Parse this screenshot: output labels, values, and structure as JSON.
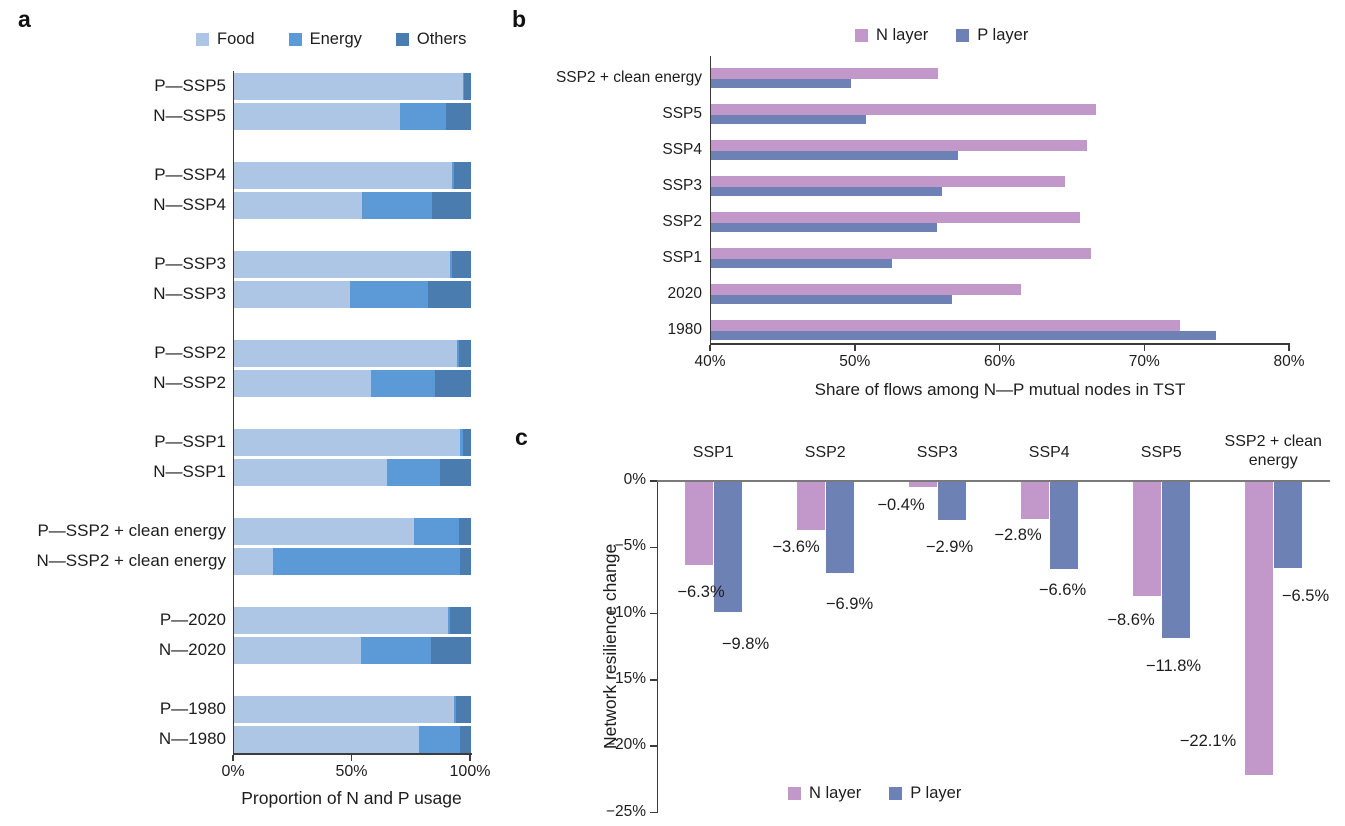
{
  "colors": {
    "food": "#aec6e6",
    "energy": "#5b9ad6",
    "others": "#4a7cb0",
    "n_layer": "#c297c9",
    "p_layer": "#6e81b5",
    "axis": "#3b3b3b",
    "zero_line": "#7a7a7a",
    "text": "#1d1d1f"
  },
  "chart_data": [
    {
      "id": "a",
      "panel_label": "a",
      "type": "bar",
      "subtype": "stacked_horizontal",
      "xlabel": "Proportion of N and P usage",
      "x_ticks": [
        "0%",
        "50%",
        "100%"
      ],
      "x_tick_values": [
        0,
        50,
        100
      ],
      "xlim": [
        0,
        100
      ],
      "grid": false,
      "legend_position": "top",
      "legend": [
        "Food",
        "Energy",
        "Others"
      ],
      "categories": [
        "P—SSP5",
        "N—SSP5",
        "P—SSP4",
        "N—SSP4",
        "P—SSP3",
        "N—SSP3",
        "P—SSP2",
        "N—SSP2",
        "P—SSP1",
        "N—SSP1",
        "P—SSP2 + clean energy",
        "N—SSP2 + clean energy",
        "P—2020",
        "N—2020",
        "P—1980",
        "N—1980"
      ],
      "series": [
        {
          "name": "Food",
          "values": [
            96.5,
            70.0,
            92.0,
            54.0,
            91.0,
            49.0,
            94.0,
            58.0,
            95.5,
            64.5,
            76.0,
            16.5,
            90.5,
            53.5,
            93.0,
            78.0
          ]
        },
        {
          "name": "Energy",
          "values": [
            0.5,
            19.5,
            1.0,
            29.5,
            1.0,
            33.0,
            1.0,
            27.0,
            1.0,
            22.5,
            19.0,
            79.0,
            0.5,
            29.5,
            0.5,
            17.5
          ]
        },
        {
          "name": "Others",
          "values": [
            3.0,
            10.5,
            7.0,
            16.5,
            8.0,
            18.0,
            5.0,
            15.0,
            3.5,
            13.0,
            5.0,
            4.5,
            9.0,
            17.0,
            6.5,
            4.5
          ]
        }
      ]
    },
    {
      "id": "b",
      "panel_label": "b",
      "type": "bar",
      "subtype": "grouped_horizontal",
      "xlabel": "Share of flows among N—P mutual nodes in TST",
      "x_ticks": [
        "40%",
        "50%",
        "60%",
        "70%",
        "80%"
      ],
      "x_tick_values": [
        40,
        50,
        60,
        70,
        80
      ],
      "xlim": [
        40,
        80
      ],
      "grid": false,
      "legend_position": "top",
      "legend": [
        "N layer",
        "P layer"
      ],
      "categories": [
        "SSP2 + clean energy",
        "SSP5",
        "SSP4",
        "SSP3",
        "SSP2",
        "SSP1",
        "2020",
        "1980"
      ],
      "series": [
        {
          "name": "N layer",
          "values": [
            55.7,
            66.6,
            66.0,
            64.5,
            65.5,
            66.3,
            61.4,
            72.4
          ]
        },
        {
          "name": "P layer",
          "values": [
            49.7,
            50.7,
            57.1,
            56.0,
            55.6,
            52.5,
            56.7,
            74.9
          ]
        }
      ]
    },
    {
      "id": "c",
      "panel_label": "c",
      "type": "bar",
      "subtype": "grouped_vertical",
      "ylabel": "Network resilience change",
      "y_ticks": [
        "0%",
        "−5%",
        "−10%",
        "−15%",
        "−20%",
        "−25%"
      ],
      "y_tick_values": [
        0,
        -5,
        -10,
        -15,
        -20,
        -25
      ],
      "ylim": [
        -25,
        0
      ],
      "grid": false,
      "legend_position": "bottom",
      "legend": [
        "N layer",
        "P layer"
      ],
      "categories": [
        "SSP1",
        "SSP2",
        "SSP3",
        "SSP4",
        "SSP5",
        "SSP2 + clean energy"
      ],
      "series": [
        {
          "name": "N layer",
          "values": [
            -6.3,
            -3.6,
            -0.4,
            -2.8,
            -8.6,
            -22.1
          ]
        },
        {
          "name": "P layer",
          "values": [
            -9.8,
            -6.9,
            -2.9,
            -6.6,
            -11.8,
            -6.5
          ]
        }
      ],
      "data_labels": {
        "n_layer": [
          "−6.3%",
          "−3.6%",
          "−0.4%",
          "−2.8%",
          "−8.6%",
          "−22.1%"
        ],
        "p_layer": [
          "−9.8%",
          "−6.9%",
          "−2.9%",
          "−6.6%",
          "−11.8%",
          "−6.5%"
        ]
      }
    }
  ]
}
